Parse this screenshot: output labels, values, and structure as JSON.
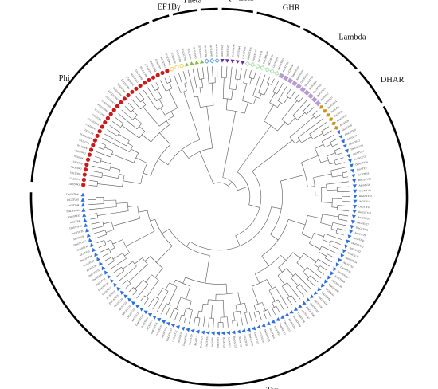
{
  "figure": {
    "clades": [
      {
        "name": "Phi",
        "count": 30,
        "marker": "circle",
        "color": "#cc1a1a"
      },
      {
        "name": "EF1Bγ",
        "count": 3,
        "marker": "circle-open",
        "color": "#f0d24a"
      },
      {
        "name": "Theta",
        "count": 4,
        "marker": "triangle",
        "color": "#7cbd3c"
      },
      {
        "name": "TCHQD",
        "count": 3,
        "marker": "diamond-open",
        "color": "#5aa0dc"
      },
      {
        "name": "Zeta",
        "count": 5,
        "marker": "triangle-down",
        "color": "#6a2d9e"
      },
      {
        "name": "GHR",
        "count": 7,
        "marker": "diamond-open",
        "color": "#9fe0a8"
      },
      {
        "name": "Lambda",
        "count": 10,
        "marker": "square",
        "color": "#b49bd0"
      },
      {
        "name": "DHAR",
        "count": 6,
        "marker": "diamond",
        "color": "#c8961e"
      },
      {
        "name": "Tau",
        "count": 98,
        "marker": "triangle-right",
        "color": "#2f6fdc"
      }
    ],
    "leaf_prefixes": [
      "DmGSTU",
      "AtGSTU",
      "OsGSTU",
      "DmGSTF",
      "AtGSTF",
      "OsGSTF"
    ]
  }
}
